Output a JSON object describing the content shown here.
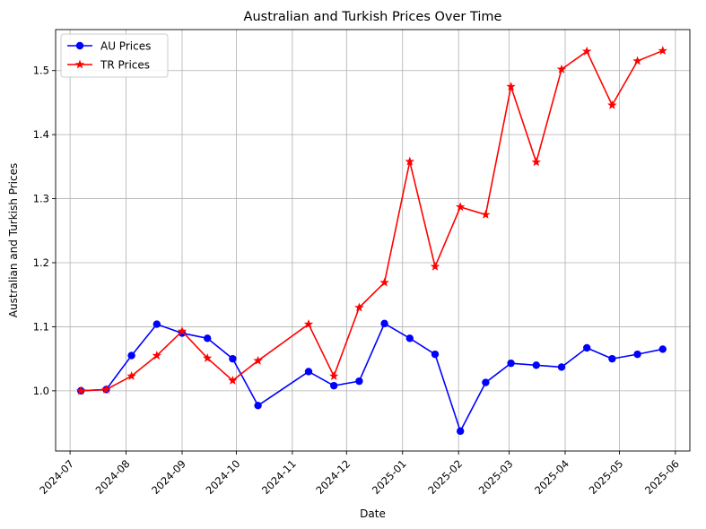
{
  "chart_data": {
    "type": "line",
    "title": "Australian and Turkish Prices Over Time",
    "xlabel": "Date",
    "ylabel": "Australian and Turkish Prices",
    "x_ticks": [
      "2024-07",
      "2024-08",
      "2024-09",
      "2024-10",
      "2024-11",
      "2024-12",
      "2025-01",
      "2025-02",
      "2025-03",
      "2025-04",
      "2025-05",
      "2025-06"
    ],
    "y_ticks": [
      "1.0",
      "1.1",
      "1.2",
      "1.3",
      "1.4",
      "1.5"
    ],
    "xlim": [
      "2024-06-23",
      "2025-06-09"
    ],
    "ylim": [
      0.906,
      1.564
    ],
    "grid": true,
    "legend_position": "top-left",
    "series": [
      {
        "name": "AU Prices",
        "color": "#0000ff",
        "marker": "circle",
        "x": [
          "2024-07-07",
          "2024-07-21",
          "2024-08-04",
          "2024-08-18",
          "2024-09-01",
          "2024-09-15",
          "2024-09-29",
          "2024-10-13",
          "2024-11-10",
          "2024-11-24",
          "2024-12-08",
          "2024-12-22",
          "2025-01-05",
          "2025-01-19",
          "2025-02-02",
          "2025-02-16",
          "2025-03-02",
          "2025-03-16",
          "2025-03-30",
          "2025-04-13",
          "2025-04-27",
          "2025-05-11",
          "2025-05-25"
        ],
        "values": [
          1.0,
          1.002,
          1.055,
          1.104,
          1.09,
          1.082,
          1.05,
          0.977,
          1.03,
          1.008,
          1.015,
          1.105,
          1.082,
          1.057,
          0.937,
          1.013,
          1.043,
          1.04,
          1.037,
          1.067,
          1.05,
          1.057,
          1.065
        ]
      },
      {
        "name": "TR Prices",
        "color": "#ff0000",
        "marker": "star",
        "x": [
          "2024-07-07",
          "2024-07-21",
          "2024-08-04",
          "2024-08-18",
          "2024-09-01",
          "2024-09-15",
          "2024-09-29",
          "2024-10-13",
          "2024-11-10",
          "2024-11-24",
          "2024-12-08",
          "2024-12-22",
          "2025-01-05",
          "2025-01-19",
          "2025-02-02",
          "2025-02-16",
          "2025-03-02",
          "2025-03-16",
          "2025-03-30",
          "2025-04-13",
          "2025-04-27",
          "2025-05-11",
          "2025-05-25"
        ],
        "values": [
          1.0,
          1.002,
          1.023,
          1.055,
          1.093,
          1.051,
          1.016,
          1.047,
          1.104,
          1.023,
          1.13,
          1.169,
          1.358,
          1.194,
          1.287,
          1.275,
          1.475,
          1.357,
          1.502,
          1.53,
          1.446,
          1.515,
          1.531
        ]
      }
    ]
  }
}
